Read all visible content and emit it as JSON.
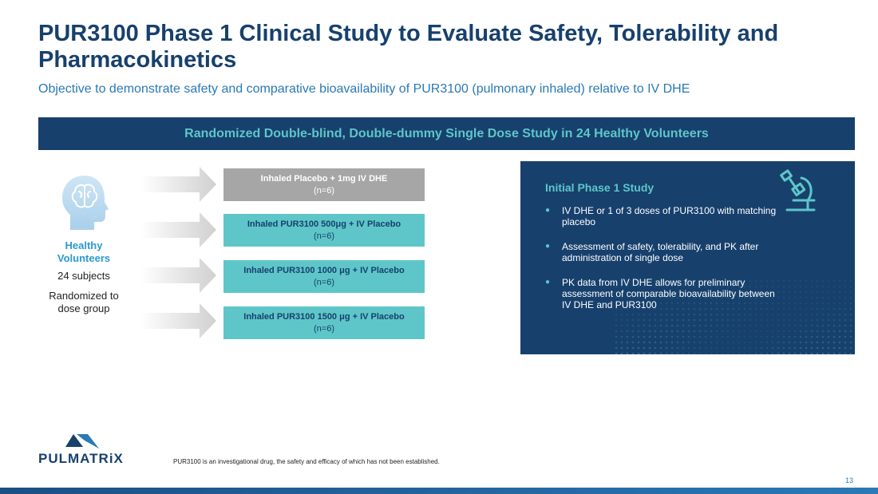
{
  "header": {
    "title": "PUR3100 Phase 1 Clinical Study to Evaluate Safety, Tolerability and Pharmacokinetics",
    "subtitle": "Objective to demonstrate safety and comparative bioavailability of PUR3100 (pulmonary inhaled) relative to IV DHE"
  },
  "banner": "Randomized Double-blind, Double-dummy Single Dose Study in 24 Healthy Volunteers",
  "volunteers": {
    "icon": "head-brain-icon",
    "title": "Healthy Volunteers",
    "count": "24 subjects",
    "note": "Randomized to dose group"
  },
  "dose_groups": [
    {
      "name": "Inhaled Placebo + 1mg IV DHE",
      "n": "(n=6)",
      "style": "gray"
    },
    {
      "name": "Inhaled PUR3100 500μg + IV Placebo",
      "n": "(n=6)",
      "style": "teal"
    },
    {
      "name": "Inhaled PUR3100 1000 μg + IV Placebo",
      "n": "(n=6)",
      "style": "teal"
    },
    {
      "name": "Inhaled PUR3100 1500 μg + IV Placebo",
      "n": "(n=6)",
      "style": "teal"
    }
  ],
  "study_panel": {
    "title": "Initial Phase 1 Study",
    "icon": "microscope-icon",
    "bullets": [
      "IV DHE or 1 of 3 doses of PUR3100 with matching placebo",
      "Assessment of safety, tolerability, and PK after administration of single dose",
      "PK data from IV DHE allows for preliminary assessment of comparable bioavailability between IV DHE and PUR3100"
    ]
  },
  "footer": {
    "logo_text": "PULMATRiX",
    "disclaimer": "PUR3100 is an investigational drug, the safety and efficacy of which has not been established.",
    "page_number": "13"
  },
  "colors": {
    "navy": "#17406d",
    "teal": "#5ec6c8",
    "blue": "#2b79b5",
    "gray": "#a6a6a6"
  }
}
